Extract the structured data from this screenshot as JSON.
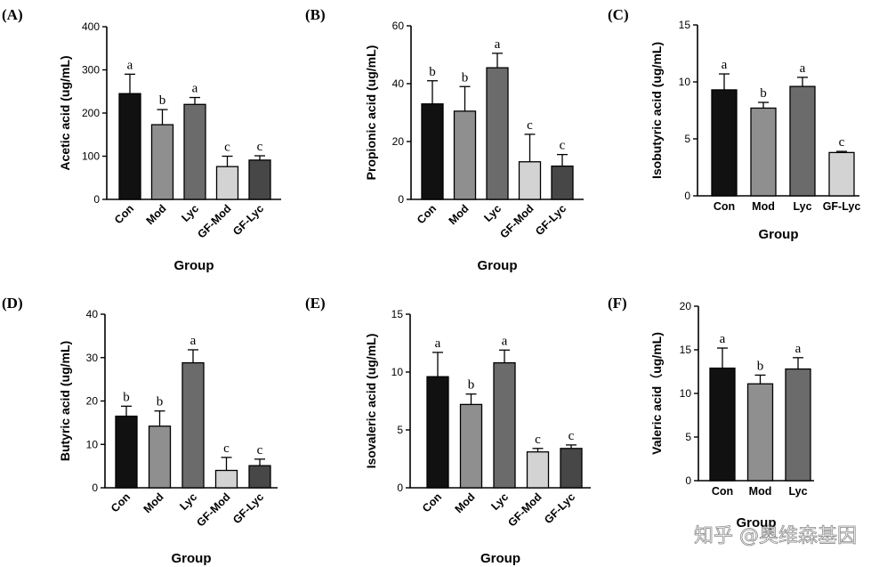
{
  "chart_data": [
    {
      "id": "A",
      "panel_label": "(A)",
      "type": "bar",
      "categories": [
        "Con",
        "Mod",
        "Lyc",
        "GF-Mod",
        "GF-Lyc"
      ],
      "values": [
        245,
        173,
        220,
        76,
        91
      ],
      "errors": [
        45,
        35,
        16,
        24,
        10
      ],
      "significance": [
        "a",
        "b",
        "a",
        "c",
        "c"
      ],
      "ylabel": "Acetic acid (ug/mL)",
      "xlabel": "Group",
      "ylim": [
        0,
        400
      ],
      "yticks": [
        "0",
        "100",
        "200",
        "300",
        "400"
      ],
      "colors": [
        "#111111",
        "#8f8f8f",
        "#6b6b6b",
        "#d3d3d3",
        "#474747"
      ]
    },
    {
      "id": "B",
      "panel_label": "(B)",
      "type": "bar",
      "categories": [
        "Con",
        "Mod",
        "Lyc",
        "GF-Mod",
        "GF-Lyc"
      ],
      "values": [
        33,
        30.5,
        45.5,
        13,
        11.5
      ],
      "errors": [
        8,
        8.5,
        5,
        9.5,
        4
      ],
      "significance": [
        "b",
        "b",
        "a",
        "c",
        "c"
      ],
      "ylabel": "Propionic acid (ug/mL)",
      "xlabel": "Group",
      "ylim": [
        0,
        60
      ],
      "yticks": [
        "0",
        "20",
        "40",
        "60"
      ],
      "colors": [
        "#111111",
        "#8f8f8f",
        "#6b6b6b",
        "#d3d3d3",
        "#474747"
      ]
    },
    {
      "id": "C",
      "panel_label": "(C)",
      "type": "bar",
      "categories": [
        "Con",
        "Mod",
        "Lyc",
        "GF-Lyc"
      ],
      "values": [
        9.3,
        7.7,
        9.6,
        3.8
      ],
      "errors": [
        1.4,
        0.5,
        0.8,
        0.1
      ],
      "significance": [
        "a",
        "b",
        "a",
        "c"
      ],
      "ylabel": "Isobutyric acid (ug/mL)",
      "xlabel": "Group",
      "ylim": [
        0,
        15
      ],
      "yticks": [
        "0",
        "5",
        "10",
        "15"
      ],
      "colors": [
        "#111111",
        "#8f8f8f",
        "#6b6b6b",
        "#d3d3d3"
      ]
    },
    {
      "id": "D",
      "panel_label": "(D)",
      "type": "bar",
      "categories": [
        "Con",
        "Mod",
        "Lyc",
        "GF-Mod",
        "GF-Lyc"
      ],
      "values": [
        16.5,
        14.2,
        28.8,
        4,
        5.1
      ],
      "errors": [
        2.3,
        3.5,
        3,
        3,
        1.5
      ],
      "significance": [
        "b",
        "b",
        "a",
        "c",
        "c"
      ],
      "ylabel": "Butyric acid (ug/mL)",
      "xlabel": "Group",
      "ylim": [
        0,
        40
      ],
      "yticks": [
        "0",
        "10",
        "20",
        "30",
        "40"
      ],
      "colors": [
        "#111111",
        "#8f8f8f",
        "#6b6b6b",
        "#d3d3d3",
        "#474747"
      ]
    },
    {
      "id": "E",
      "panel_label": "(E)",
      "type": "bar",
      "categories": [
        "Con",
        "Mod",
        "Lyc",
        "GF-Mod",
        "GF-Lyc"
      ],
      "values": [
        9.6,
        7.2,
        10.8,
        3.1,
        3.4
      ],
      "errors": [
        2.1,
        0.9,
        1.1,
        0.3,
        0.3
      ],
      "significance": [
        "a",
        "b",
        "a",
        "c",
        "c"
      ],
      "ylabel": "Isovaleric acid (ug/mL)",
      "xlabel": "Group",
      "ylim": [
        0,
        15
      ],
      "yticks": [
        "0",
        "5",
        "10",
        "15"
      ],
      "colors": [
        "#111111",
        "#8f8f8f",
        "#6b6b6b",
        "#d3d3d3",
        "#474747"
      ]
    },
    {
      "id": "F",
      "panel_label": "(F)",
      "type": "bar",
      "categories": [
        "Con",
        "Mod",
        "Lyc"
      ],
      "values": [
        12.9,
        11.1,
        12.8
      ],
      "errors": [
        2.3,
        1,
        1.3
      ],
      "significance": [
        "a",
        "b",
        "a"
      ],
      "ylabel": "Valeric acid（ug/mL)",
      "xlabel": "Group",
      "ylim": [
        0,
        20
      ],
      "yticks": [
        "0",
        "5",
        "10",
        "15",
        "20"
      ],
      "colors": [
        "#111111",
        "#8f8f8f",
        "#6b6b6b"
      ]
    }
  ],
  "watermark": "知乎 @奥维森基因"
}
